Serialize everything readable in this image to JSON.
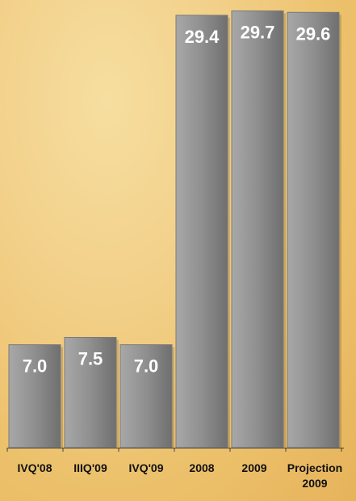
{
  "chart_data": {
    "type": "bar",
    "categories": [
      "IVQ'08",
      "IIIQ'09",
      "IVQ'09",
      "2008",
      "2009",
      "Projection 2009"
    ],
    "values": [
      7.0,
      7.5,
      7.0,
      29.4,
      29.7,
      29.6
    ],
    "value_labels": [
      "7.0",
      "7.5",
      "7.0",
      "29.4",
      "29.7",
      "29.6"
    ],
    "category_label_lines": [
      [
        "IVQ'08"
      ],
      [
        "IIIQ'09"
      ],
      [
        "IVQ'09"
      ],
      [
        "2008"
      ],
      [
        "2009"
      ],
      [
        "Projection",
        "2009"
      ]
    ],
    "title": "",
    "xlabel": "",
    "ylabel": "",
    "ylim": [
      0,
      30
    ],
    "grid": false,
    "legend": "none",
    "colors": {
      "bar": "#8f8f8f",
      "bar_dark": "#6f6f6f",
      "bar_light": "#a8a8a8",
      "value_text": "#ffffff",
      "axis": "#444444"
    }
  }
}
